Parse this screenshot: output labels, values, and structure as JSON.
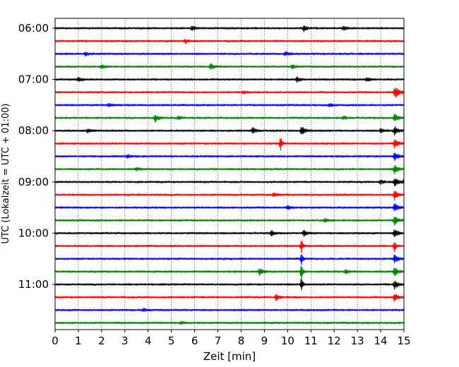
{
  "chart_data": {
    "type": "line",
    "title": "",
    "xlabel": "Zeit  [min]",
    "ylabel": "UTC (Lokalzeit = UTC + 01:00)",
    "xlim": [
      0,
      15
    ],
    "x_ticks": [
      "0",
      "1",
      "2",
      "3",
      "4",
      "5",
      "6",
      "7",
      "8",
      "9",
      "10",
      "11",
      "12",
      "13",
      "14",
      "15"
    ],
    "y_ticks": [
      {
        "label": "06:00",
        "row": 0
      },
      {
        "label": "07:00",
        "row": 4
      },
      {
        "label": "08:00",
        "row": 8
      },
      {
        "label": "09:00",
        "row": 12
      },
      {
        "label": "10:00",
        "row": 16
      },
      {
        "label": "11:00",
        "row": 20
      }
    ],
    "grid": "vertical dotted lines at each minute",
    "row_minutes": 15,
    "row_colors": [
      "#000000",
      "#ff0000",
      "#0000ff",
      "#008000"
    ],
    "series": [
      {
        "start": "06:00",
        "color": "#000000",
        "events": [
          {
            "t": 5.9,
            "amp": 0.5
          },
          {
            "t": 10.7,
            "amp": 0.6
          },
          {
            "t": 12.4,
            "amp": 0.4
          }
        ]
      },
      {
        "start": "06:15",
        "color": "#ff0000",
        "events": [
          {
            "t": 5.6,
            "amp": 0.4
          }
        ]
      },
      {
        "start": "06:30",
        "color": "#0000ff",
        "events": [
          {
            "t": 1.3,
            "amp": 0.3
          },
          {
            "t": 9.9,
            "amp": 0.4
          }
        ]
      },
      {
        "start": "06:45",
        "color": "#008000",
        "events": [
          {
            "t": 2.0,
            "amp": 0.4
          },
          {
            "t": 6.7,
            "amp": 0.6
          },
          {
            "t": 10.2,
            "amp": 0.4
          }
        ]
      },
      {
        "start": "07:00",
        "color": "#000000",
        "events": [
          {
            "t": 1.0,
            "amp": 0.4
          },
          {
            "t": 10.4,
            "amp": 0.5
          },
          {
            "t": 13.4,
            "amp": 0.4
          }
        ]
      },
      {
        "start": "07:15",
        "color": "#ff0000",
        "events": [
          {
            "t": 8.1,
            "amp": 0.3
          },
          {
            "t": 14.7,
            "amp": 0.6
          },
          {
            "t": 14.6,
            "amp": 0.9
          }
        ]
      },
      {
        "start": "07:30",
        "color": "#0000ff",
        "events": [
          {
            "t": 2.3,
            "amp": 0.3
          },
          {
            "t": 11.8,
            "amp": 0.3
          }
        ]
      },
      {
        "start": "07:45",
        "color": "#008000",
        "events": [
          {
            "t": 4.3,
            "amp": 0.7
          },
          {
            "t": 5.3,
            "amp": 0.3
          },
          {
            "t": 12.4,
            "amp": 0.3
          },
          {
            "t": 14.6,
            "amp": 0.9
          }
        ]
      },
      {
        "start": "08:00",
        "color": "#000000",
        "events": [
          {
            "t": 1.4,
            "amp": 0.4
          },
          {
            "t": 8.5,
            "amp": 0.6
          },
          {
            "t": 10.6,
            "amp": 0.9
          },
          {
            "t": 14.0,
            "amp": 0.4
          },
          {
            "t": 14.6,
            "amp": 0.9
          }
        ]
      },
      {
        "start": "08:15",
        "color": "#ff0000",
        "events": [
          {
            "t": 9.7,
            "amp": 1.3
          },
          {
            "t": 14.6,
            "amp": 0.9
          }
        ]
      },
      {
        "start": "08:30",
        "color": "#0000ff",
        "events": [
          {
            "t": 3.1,
            "amp": 0.3
          },
          {
            "t": 14.6,
            "amp": 0.9
          }
        ]
      },
      {
        "start": "08:45",
        "color": "#008000",
        "events": [
          {
            "t": 3.5,
            "amp": 0.3
          },
          {
            "t": 14.6,
            "amp": 0.9
          }
        ]
      },
      {
        "start": "09:00",
        "color": "#000000",
        "events": [
          {
            "t": 14.0,
            "amp": 0.4
          },
          {
            "t": 14.6,
            "amp": 0.9
          },
          {
            "t": 15.0,
            "amp": 0.4
          }
        ]
      },
      {
        "start": "09:15",
        "color": "#ff0000",
        "events": [
          {
            "t": 9.4,
            "amp": 0.4
          },
          {
            "t": 14.6,
            "amp": 0.9
          }
        ]
      },
      {
        "start": "09:30",
        "color": "#0000ff",
        "events": [
          {
            "t": 10.0,
            "amp": 0.4
          },
          {
            "t": 14.6,
            "amp": 0.9
          }
        ]
      },
      {
        "start": "09:45",
        "color": "#008000",
        "events": [
          {
            "t": 11.6,
            "amp": 0.4
          },
          {
            "t": 14.6,
            "amp": 0.9
          }
        ]
      },
      {
        "start": "10:00",
        "color": "#000000",
        "events": [
          {
            "t": 9.3,
            "amp": 0.5
          },
          {
            "t": 10.7,
            "amp": 0.6
          },
          {
            "t": 14.6,
            "amp": 0.9
          }
        ]
      },
      {
        "start": "10:15",
        "color": "#ff0000",
        "events": [
          {
            "t": 10.6,
            "amp": 1.3
          },
          {
            "t": 14.6,
            "amp": 1.1
          }
        ]
      },
      {
        "start": "10:30",
        "color": "#0000ff",
        "events": [
          {
            "t": 10.6,
            "amp": 1.3
          },
          {
            "t": 14.6,
            "amp": 0.9
          }
        ]
      },
      {
        "start": "10:45",
        "color": "#008000",
        "events": [
          {
            "t": 8.8,
            "amp": 0.7
          },
          {
            "t": 10.6,
            "amp": 1.8
          },
          {
            "t": 12.5,
            "amp": 0.4
          },
          {
            "t": 14.6,
            "amp": 0.9
          }
        ]
      },
      {
        "start": "11:00",
        "color": "#000000",
        "events": [
          {
            "t": 10.6,
            "amp": 1.3
          },
          {
            "t": 14.6,
            "amp": 0.9
          }
        ]
      },
      {
        "start": "11:15",
        "color": "#ff0000",
        "events": [
          {
            "t": 9.5,
            "amp": 0.6
          },
          {
            "t": 14.6,
            "amp": 0.9
          }
        ]
      },
      {
        "start": "11:30",
        "color": "#0000ff",
        "events": [
          {
            "t": 3.8,
            "amp": 0.3
          }
        ]
      },
      {
        "start": "11:45",
        "color": "#008000",
        "events": [
          {
            "t": 5.4,
            "amp": 0.3
          }
        ]
      }
    ]
  }
}
